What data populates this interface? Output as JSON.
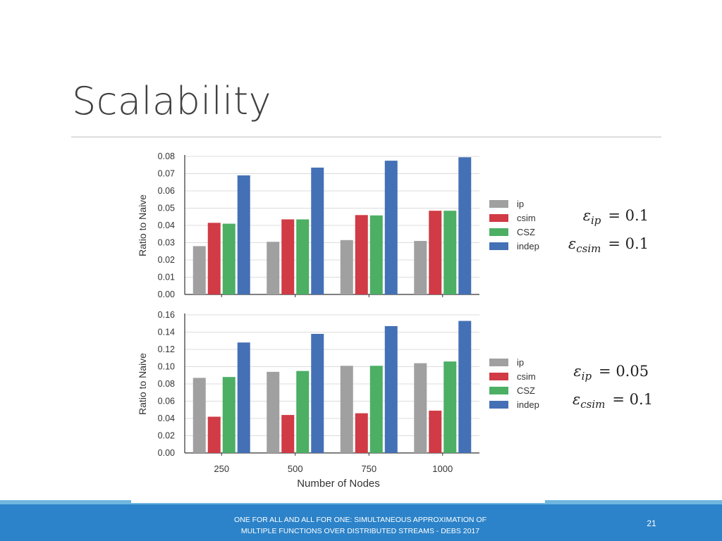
{
  "slide": {
    "title": "Scalability",
    "footer_line1": "ONE FOR ALL AND ALL FOR ONE: SIMULTANEOUS APPROXIMATION OF",
    "footer_line2": "MULTIPLE FUNCTIONS OVER DISTRIBUTED STREAMS - DEBS 2017",
    "page_number": "21"
  },
  "annotations": [
    {
      "lines": [
        {
          "symbol": "ε",
          "sub": "ip",
          "rest": "= 0.1"
        },
        {
          "symbol": "ε",
          "sub": "csim",
          "rest": "= 0.1"
        }
      ]
    },
    {
      "lines": [
        {
          "symbol": "ε",
          "sub": "ip",
          "rest": "= 0.05"
        },
        {
          "symbol": "ε",
          "sub": "csim",
          "rest": "= 0.1"
        }
      ]
    }
  ],
  "colors": {
    "ip": "#a0a0a0",
    "csim": "#d03b45",
    "CSZ": "#4caf64",
    "indep": "#4470b5"
  },
  "chart_data": [
    {
      "type": "bar",
      "title": "",
      "xlabel": "",
      "ylabel": "Ratio to Naive",
      "ylim": [
        0,
        0.08
      ],
      "yticks": [
        "0.00",
        "0.01",
        "0.02",
        "0.03",
        "0.04",
        "0.05",
        "0.06",
        "0.07",
        "0.08"
      ],
      "categories": [
        "250",
        "500",
        "750",
        "1000"
      ],
      "show_xticklabels": false,
      "legend_position": "right",
      "series": [
        {
          "name": "ip",
          "values": [
            0.028,
            0.0305,
            0.0315,
            0.031
          ]
        },
        {
          "name": "csim",
          "values": [
            0.0415,
            0.0435,
            0.046,
            0.0485
          ]
        },
        {
          "name": "CSZ",
          "values": [
            0.041,
            0.0435,
            0.0458,
            0.0485
          ]
        },
        {
          "name": "indep",
          "values": [
            0.069,
            0.0735,
            0.0775,
            0.0795
          ]
        }
      ]
    },
    {
      "type": "bar",
      "title": "",
      "xlabel": "Number of Nodes",
      "ylabel": "Ratio to Naive",
      "ylim": [
        0,
        0.16
      ],
      "yticks": [
        "0.00",
        "0.02",
        "0.04",
        "0.06",
        "0.08",
        "0.10",
        "0.12",
        "0.14",
        "0.16"
      ],
      "categories": [
        "250",
        "500",
        "750",
        "1000"
      ],
      "show_xticklabels": true,
      "legend_position": "right",
      "series": [
        {
          "name": "ip",
          "values": [
            0.087,
            0.094,
            0.101,
            0.104
          ]
        },
        {
          "name": "csim",
          "values": [
            0.042,
            0.044,
            0.046,
            0.049
          ]
        },
        {
          "name": "CSZ",
          "values": [
            0.088,
            0.095,
            0.101,
            0.106
          ]
        },
        {
          "name": "indep",
          "values": [
            0.128,
            0.138,
            0.147,
            0.153
          ]
        }
      ]
    }
  ]
}
